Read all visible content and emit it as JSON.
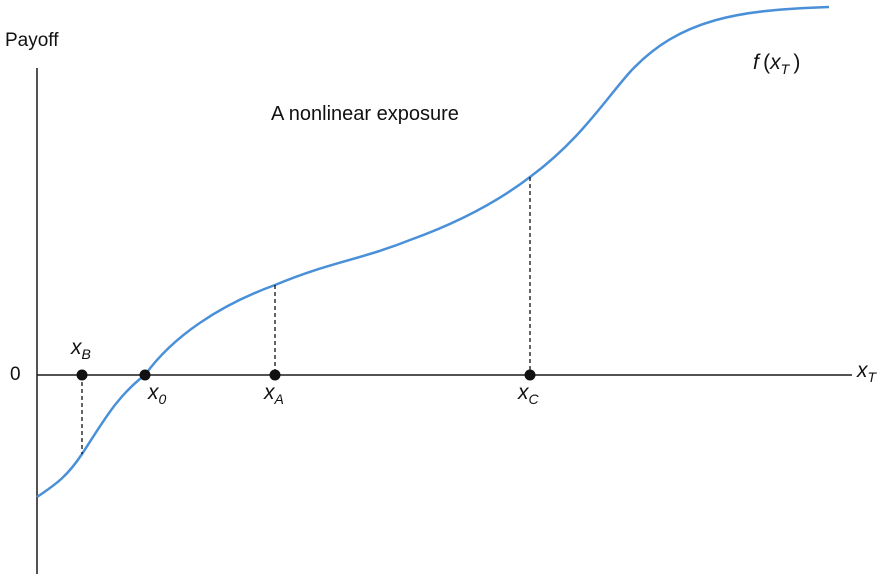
{
  "diagram": {
    "y_axis_label": "Payoff",
    "zero_label": "0",
    "x_axis_label": {
      "base": "x",
      "sub": "T"
    },
    "caption": "A nonlinear exposure",
    "curve_label": {
      "func": "f",
      "open": "(",
      "base": "x",
      "sub": "T",
      "close": ")"
    },
    "points": [
      {
        "id": "xB",
        "base": "x",
        "sub": "B"
      },
      {
        "id": "x0",
        "base": "x",
        "sub": "0"
      },
      {
        "id": "xA",
        "base": "x",
        "sub": "A"
      },
      {
        "id": "xC",
        "base": "x",
        "sub": "C"
      }
    ],
    "colors": {
      "curve": "#4a90d9",
      "axis": "#1a1a1a",
      "marker": "#111111"
    }
  }
}
